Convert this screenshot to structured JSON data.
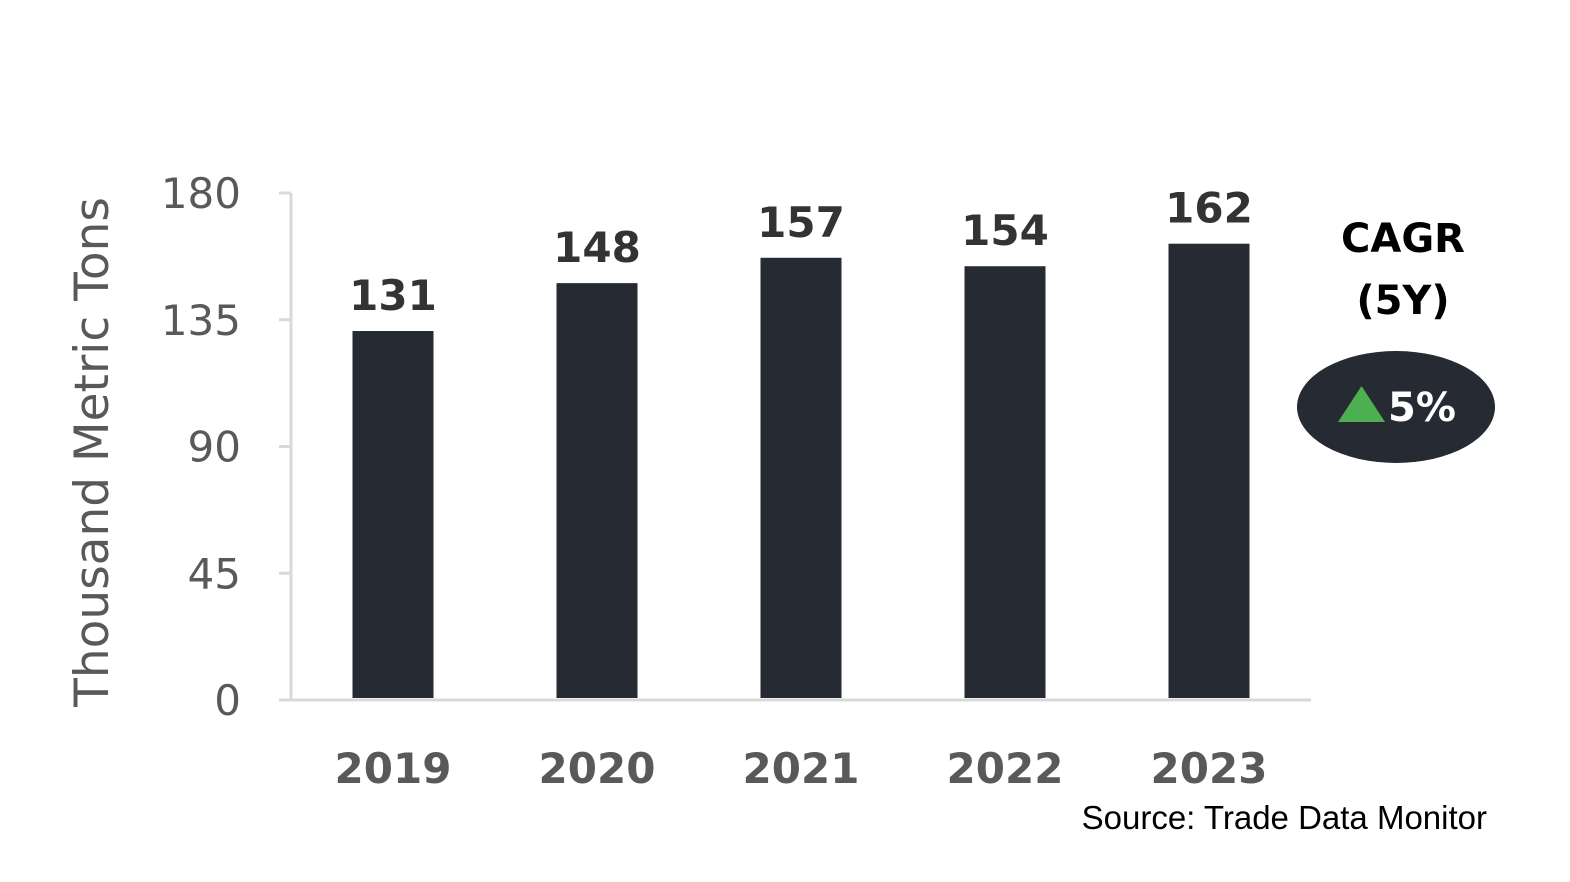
{
  "chart_data": {
    "type": "bar",
    "categories": [
      "2019",
      "2020",
      "2021",
      "2022",
      "2023"
    ],
    "values": [
      131,
      148,
      157,
      154,
      162
    ],
    "data_labels": [
      "131",
      "148",
      "157",
      "154",
      "162"
    ],
    "ylabel": "Thousand Metric Tons",
    "ylim": [
      0,
      180
    ],
    "yticks": [
      "0",
      "45",
      "90",
      "135",
      "180"
    ],
    "grid": false,
    "legend": "none",
    "colors": {
      "bar": "#252a33",
      "axis": "#d9d9d9",
      "badge": "#252a33",
      "up_arrow": "#4caf50"
    }
  },
  "cagr": {
    "title_line1": "CAGR",
    "title_line2": "(5Y)",
    "value": "5%",
    "direction_icon": "up-triangle-icon"
  },
  "source": "Source: Trade Data Monitor"
}
